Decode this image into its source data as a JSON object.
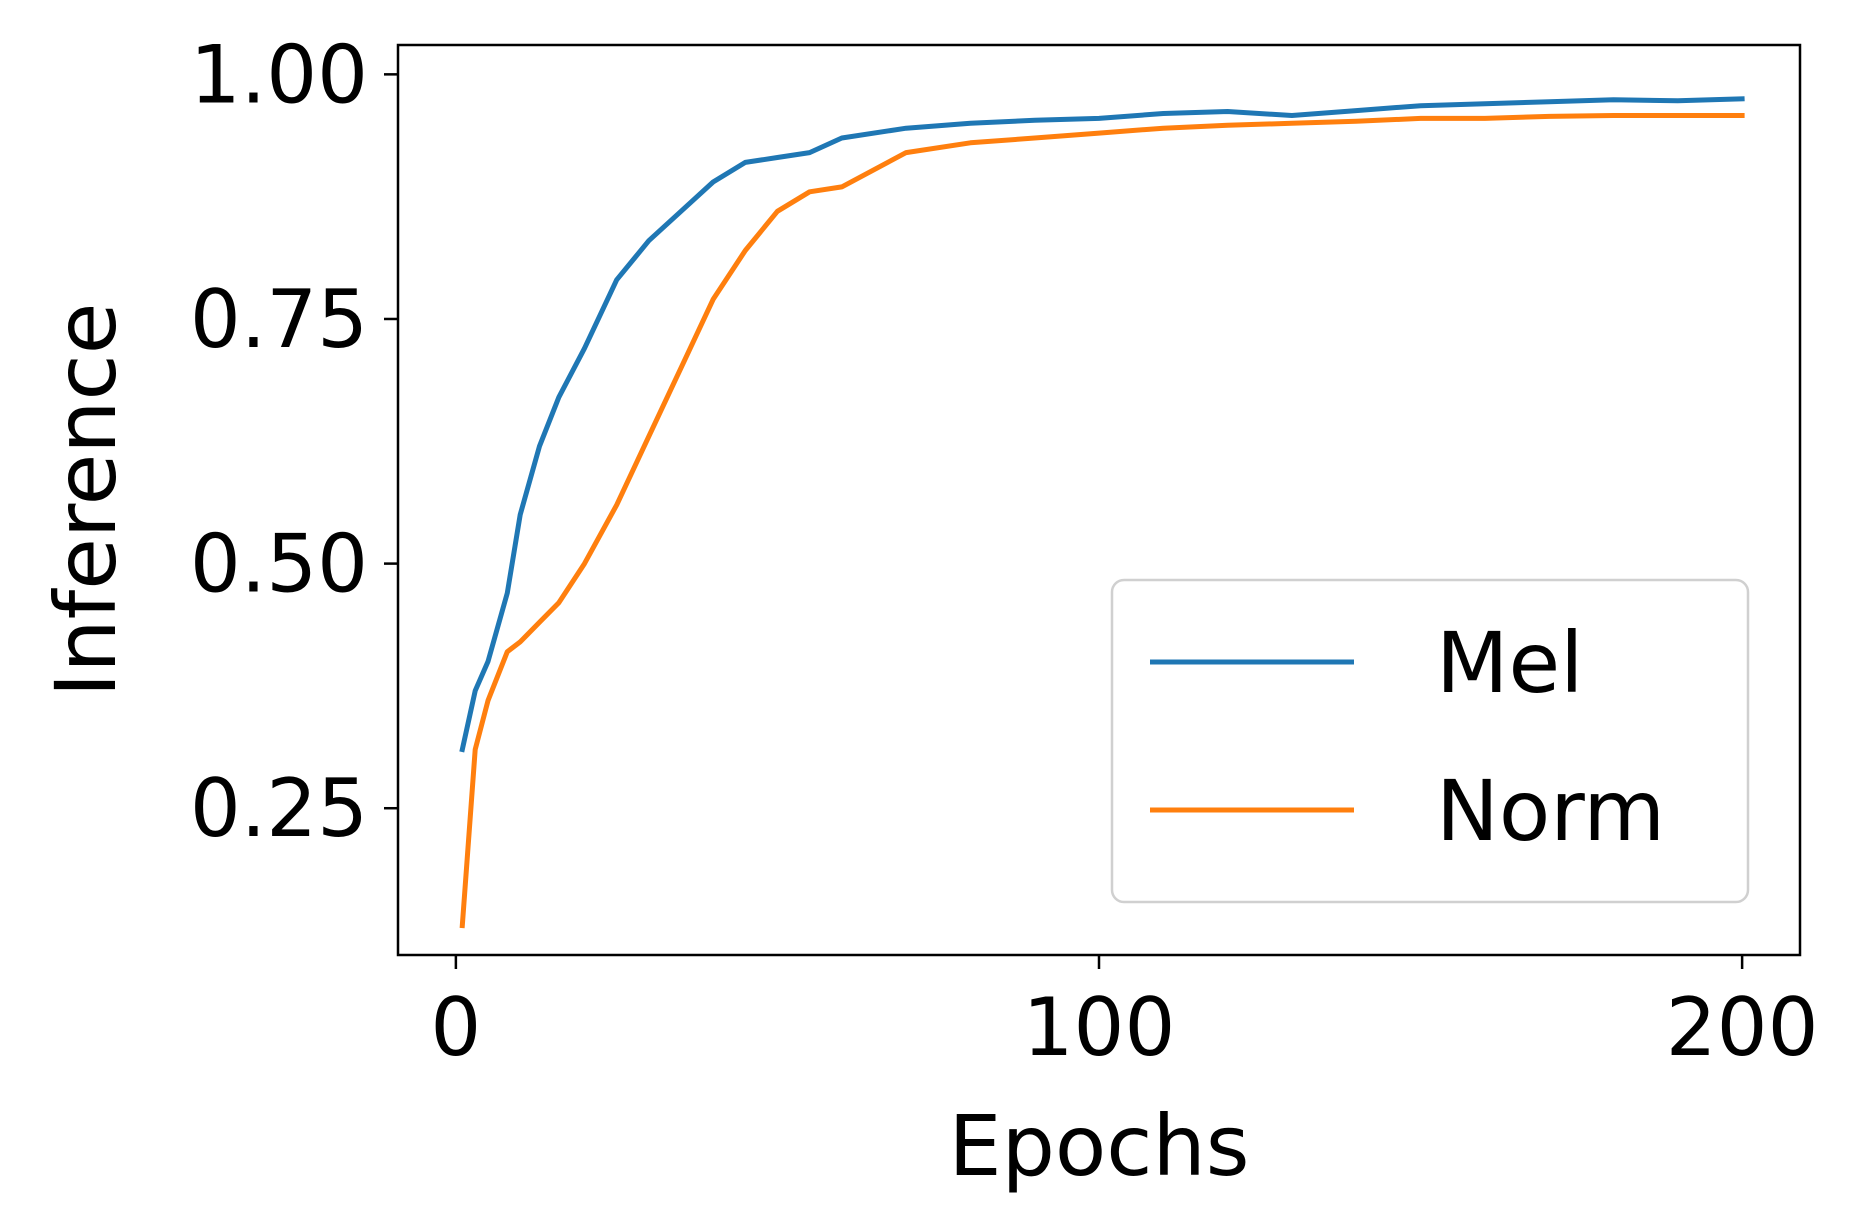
{
  "chart_data": {
    "type": "line",
    "title": "",
    "xlabel": "Epochs",
    "ylabel": "Inference",
    "xlim": [
      -9,
      209
    ],
    "ylim": [
      0.1,
      1.03
    ],
    "xticks": [
      0,
      100,
      200
    ],
    "xtick_labels": [
      "0",
      "100",
      "200"
    ],
    "yticks": [
      0.25,
      0.5,
      0.75,
      1.0
    ],
    "ytick_labels": [
      "0.25",
      "0.50",
      "0.75",
      "1.00"
    ],
    "grid": false,
    "legend_position": "lower right",
    "x": [
      1,
      3,
      5,
      8,
      10,
      13,
      16,
      20,
      25,
      30,
      35,
      40,
      45,
      50,
      55,
      60,
      70,
      80,
      90,
      100,
      110,
      120,
      130,
      140,
      150,
      160,
      170,
      180,
      190,
      200
    ],
    "series": [
      {
        "name": "Mel",
        "color": "#1f77b4",
        "values": [
          0.31,
          0.37,
          0.4,
          0.47,
          0.55,
          0.62,
          0.67,
          0.72,
          0.79,
          0.83,
          0.86,
          0.89,
          0.91,
          0.915,
          0.92,
          0.935,
          0.945,
          0.95,
          0.953,
          0.955,
          0.96,
          0.962,
          0.958,
          0.963,
          0.968,
          0.97,
          0.972,
          0.974,
          0.973,
          0.975
        ]
      },
      {
        "name": "Norm",
        "color": "#ff7f0e",
        "values": [
          0.13,
          0.31,
          0.36,
          0.41,
          0.42,
          0.44,
          0.46,
          0.5,
          0.56,
          0.63,
          0.7,
          0.77,
          0.82,
          0.86,
          0.88,
          0.885,
          0.92,
          0.93,
          0.935,
          0.94,
          0.945,
          0.948,
          0.95,
          0.952,
          0.955,
          0.955,
          0.957,
          0.958,
          0.958,
          0.958
        ]
      }
    ]
  }
}
